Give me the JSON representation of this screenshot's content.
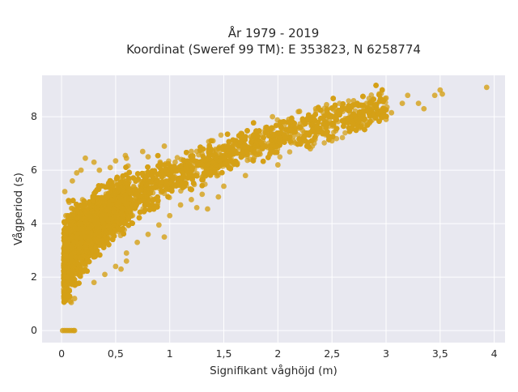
{
  "chart_data": {
    "type": "scatter",
    "title_line1": "År 1979 - 2019",
    "title_line2": "Koordinat (Sweref 99 TM): E 353823, N 6258774",
    "xlabel": "Signifikant våghöjd (m)",
    "ylabel": "Vågperiod (s)",
    "xlim": [
      -0.18,
      4.1
    ],
    "ylim": [
      -0.45,
      9.55
    ],
    "x_ticks": [
      0,
      0.5,
      1,
      1.5,
      2,
      2.5,
      3,
      3.5,
      4
    ],
    "x_tick_labels": [
      "0",
      "0,5",
      "1",
      "1,5",
      "2",
      "2,5",
      "3",
      "3,5",
      "4"
    ],
    "y_ticks": [
      0,
      2,
      4,
      6,
      8
    ],
    "y_tick_labels": [
      "0",
      "2",
      "4",
      "6",
      "8"
    ],
    "grid": true,
    "marker_color": "#D4A017",
    "plot_bg": "#E8E8F0",
    "series": [
      {
        "points": [
          [
            0.02,
            1.55
          ],
          [
            0.04,
            2.0
          ],
          [
            0.04,
            2.8
          ],
          [
            0.03,
            3.5
          ],
          [
            0.04,
            4.3
          ],
          [
            0.03,
            5.2
          ],
          [
            0.06,
            1.3
          ],
          [
            0.08,
            1.1
          ],
          [
            0.09,
            1.05
          ],
          [
            0.12,
            1.2
          ],
          [
            0.07,
            4.8
          ],
          [
            0.1,
            5.6
          ],
          [
            0.14,
            5.9
          ],
          [
            0.18,
            6.0
          ],
          [
            0.22,
            6.45
          ],
          [
            0.3,
            6.3
          ],
          [
            0.35,
            6.0
          ],
          [
            0.45,
            6.1
          ],
          [
            0.5,
            6.35
          ],
          [
            0.59,
            6.55
          ],
          [
            0.6,
            6.45
          ],
          [
            0.75,
            6.7
          ],
          [
            0.8,
            6.5
          ],
          [
            0.95,
            6.9
          ],
          [
            1.05,
            6.3
          ],
          [
            1.2,
            6.7
          ],
          [
            1.3,
            6.6
          ],
          [
            1.4,
            7.1
          ],
          [
            1.6,
            7.0
          ],
          [
            1.75,
            7.25
          ],
          [
            1.9,
            7.55
          ],
          [
            1.95,
            8.0
          ],
          [
            2.1,
            7.9
          ],
          [
            2.2,
            8.2
          ],
          [
            2.35,
            8.3
          ],
          [
            2.45,
            8.45
          ],
          [
            2.6,
            8.2
          ],
          [
            2.7,
            8.6
          ],
          [
            2.82,
            8.5
          ],
          [
            2.9,
            8.45
          ],
          [
            3.0,
            8.7
          ],
          [
            3.05,
            8.15
          ],
          [
            3.15,
            8.5
          ],
          [
            3.2,
            8.8
          ],
          [
            3.3,
            8.5
          ],
          [
            3.35,
            8.3
          ],
          [
            3.45,
            8.8
          ],
          [
            3.5,
            9.0
          ],
          [
            3.52,
            8.85
          ],
          [
            3.93,
            9.1
          ],
          [
            0.3,
            1.8
          ],
          [
            0.4,
            2.1
          ],
          [
            0.5,
            2.4
          ],
          [
            0.6,
            2.9
          ],
          [
            0.7,
            3.3
          ],
          [
            0.8,
            3.6
          ],
          [
            0.9,
            3.95
          ],
          [
            1.0,
            4.3
          ],
          [
            1.1,
            4.7
          ],
          [
            1.2,
            4.9
          ],
          [
            1.3,
            5.1
          ],
          [
            1.5,
            5.4
          ],
          [
            1.7,
            5.8
          ],
          [
            2.0,
            6.2
          ],
          [
            2.3,
            6.8
          ],
          [
            2.5,
            7.1
          ],
          [
            2.8,
            7.6
          ],
          [
            3.0,
            7.9
          ],
          [
            0.6,
            2.6
          ],
          [
            0.55,
            2.3
          ],
          [
            1.45,
            5.0
          ],
          [
            1.25,
            4.6
          ],
          [
            0.95,
            3.5
          ],
          [
            1.35,
            4.55
          ]
        ],
        "zero_points_x": [
          0.01,
          0.03,
          0.05,
          0.07,
          0.09,
          0.11,
          0.12
        ]
      }
    ]
  }
}
